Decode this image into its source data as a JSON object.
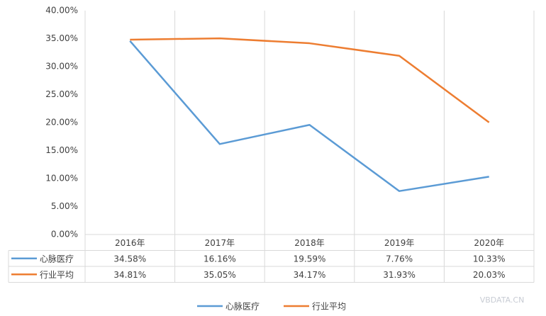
{
  "chart_data": {
    "type": "line",
    "categories": [
      "2016年",
      "2017年",
      "2018年",
      "2019年",
      "2020年"
    ],
    "series": [
      {
        "name": "心脉医疗",
        "color": "#5b9bd5",
        "values": [
          34.58,
          16.16,
          19.59,
          7.76,
          10.33
        ],
        "value_labels": [
          "34.58%",
          "16.16%",
          "19.59%",
          "7.76%",
          "10.33%"
        ]
      },
      {
        "name": "行业平均",
        "color": "#ed7d31",
        "values": [
          34.81,
          35.05,
          34.17,
          31.93,
          20.03
        ],
        "value_labels": [
          "34.81%",
          "35.05%",
          "34.17%",
          "31.93%",
          "20.03%"
        ]
      }
    ],
    "ylim": [
      0,
      40
    ],
    "yticks": [
      {
        "value": 0,
        "label": "0.00%"
      },
      {
        "value": 5,
        "label": "5.00%"
      },
      {
        "value": 10,
        "label": "10.00%"
      },
      {
        "value": 15,
        "label": "15.00%"
      },
      {
        "value": 20,
        "label": "20.00%"
      },
      {
        "value": 25,
        "label": "25.00%"
      },
      {
        "value": 30,
        "label": "30.00%"
      },
      {
        "value": 35,
        "label": "35.00%"
      },
      {
        "value": 40,
        "label": "40.00%"
      }
    ],
    "legend": "bottom",
    "watermark": "VBDATA.CN"
  }
}
